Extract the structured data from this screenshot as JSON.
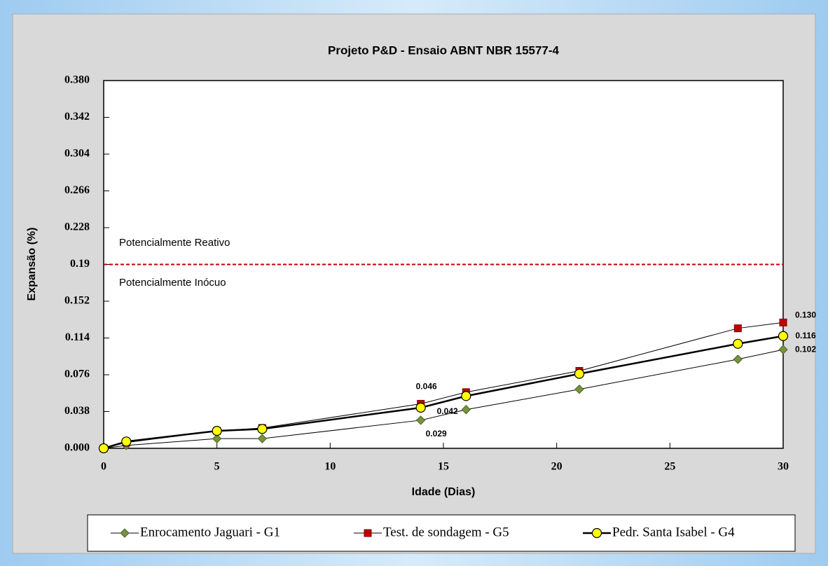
{
  "chart_data": {
    "type": "line",
    "title": "Projeto P&D - Ensaio ABNT NBR 15577-4",
    "x_label": "Idade (Dias)",
    "y_label": "Expansão (%)",
    "x": [
      0,
      1,
      5,
      7,
      14,
      16,
      21,
      28,
      30
    ],
    "series": [
      {
        "name": "Enrocamento Jaguari - G1",
        "color": "#77933c",
        "marker": "diamond",
        "line_width": 1,
        "values": [
          0,
          0.003,
          0.01,
          0.01,
          0.029,
          0.04,
          0.061,
          0.092,
          0.102
        ],
        "value_labels": [
          null,
          null,
          null,
          null,
          "0.029",
          null,
          null,
          null,
          "0.102"
        ]
      },
      {
        "name": "Test. de sondagem  - G5",
        "color": "#c00000",
        "marker": "square",
        "line_width": 1,
        "values": [
          0,
          0.006,
          0.018,
          0.021,
          0.046,
          0.058,
          0.08,
          0.124,
          0.13
        ],
        "value_labels": [
          null,
          null,
          null,
          null,
          "0.046",
          null,
          null,
          null,
          "0.130"
        ]
      },
      {
        "name": "Pedr. Santa Isabel - G4",
        "color": "#ffff00",
        "marker": "circle",
        "line_width": 2.5,
        "values": [
          0,
          0.007,
          0.018,
          0.02,
          0.042,
          0.054,
          0.077,
          0.108,
          0.116
        ],
        "value_labels": [
          null,
          null,
          null,
          null,
          "0.042",
          null,
          null,
          null,
          "0.116"
        ]
      }
    ],
    "xlim": [
      0,
      30
    ],
    "xticks": [
      0,
      5,
      10,
      15,
      20,
      25,
      30
    ],
    "ylim": [
      0,
      0.38
    ],
    "yticks": [
      {
        "value": 0,
        "label": "0.000"
      },
      0.038,
      0.076,
      0.114,
      0.152,
      0.19,
      0.228,
      0.266,
      0.304,
      0.342,
      {
        "value": 0.38,
        "label": "0.380"
      }
    ],
    "reference_line": {
      "value": 0.19,
      "color": "#c00000"
    },
    "annotations": [
      "Potencialmente Reativo",
      "Potencialmente Inócuo"
    ],
    "legend": "bottom",
    "grid": false
  }
}
